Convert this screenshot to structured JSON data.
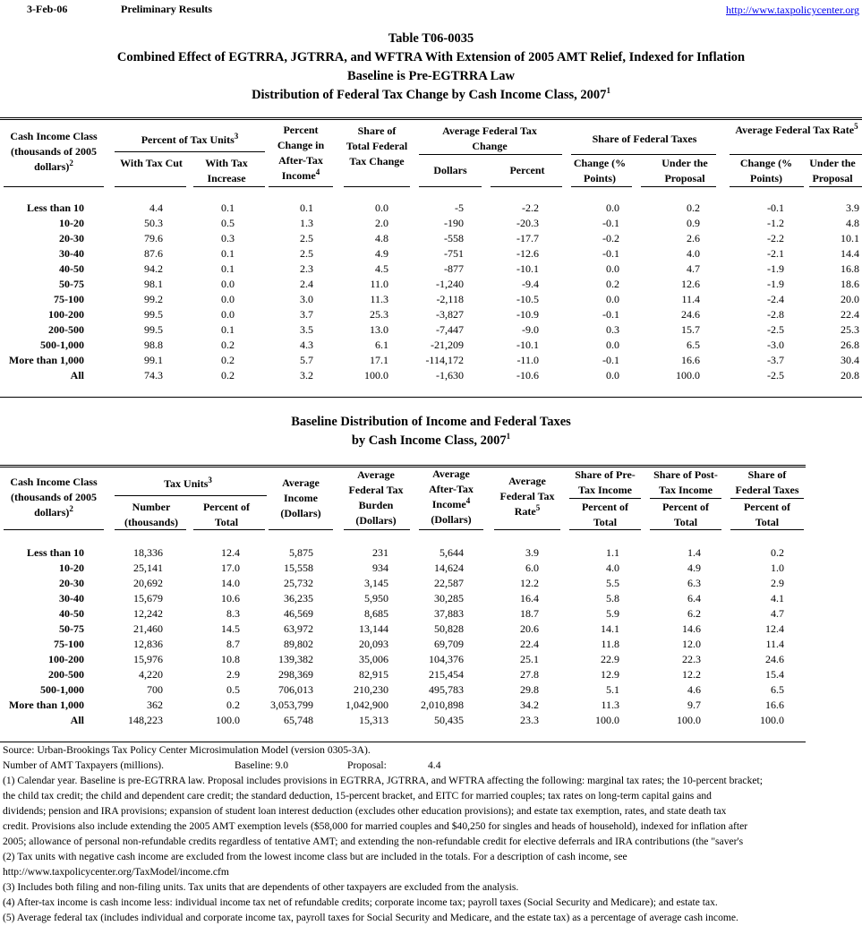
{
  "header": {
    "date": "3-Feb-06",
    "status": "Preliminary Results",
    "url": "http://www.taxpolicycenter.org"
  },
  "table1": {
    "titles": [
      {
        "text": "Table T06-0035"
      },
      {
        "text": "Combined Effect of EGTRRA, JGTRRA, and WFTRA With Extension of 2005 AMT Relief, Indexed for Inflation"
      },
      {
        "text": "Baseline is Pre-EGTRRA Law"
      },
      {
        "text": "Distribution of Federal Tax Change by Cash Income Class, 2007",
        "note": "1"
      }
    ],
    "columns": [
      {
        "text": "Cash Income Class (thousands of 2005 dollars)",
        "note": "2"
      },
      {
        "text": "Percent of Tax Units",
        "note": "3"
      },
      {
        "text": "With Tax Cut"
      },
      {
        "text": "With Tax Increase"
      },
      {
        "text": "Percent Change in After-Tax Income",
        "note": "4"
      },
      {
        "text": "Share of Total Federal Tax Change"
      },
      {
        "text": "Average Federal Tax Change"
      },
      {
        "text": "Dollars"
      },
      {
        "text": "Percent"
      },
      {
        "text": "Share of Federal Taxes"
      },
      {
        "text": "Change (% Points)"
      },
      {
        "text": "Under the Proposal"
      },
      {
        "text": "Average Federal Tax Rate",
        "note": "5"
      },
      {
        "text": "Change (% Points)"
      },
      {
        "text": "Under the Proposal"
      }
    ],
    "rows": [
      {
        "label": "Less than 10",
        "values": [
          "4.4",
          "0.1",
          "0.1",
          "0.0",
          "-5",
          "-2.2",
          "0.0",
          "0.2",
          "-0.1",
          "3.9"
        ]
      },
      {
        "label": "10-20",
        "values": [
          "50.3",
          "0.5",
          "1.3",
          "2.0",
          "-190",
          "-20.3",
          "-0.1",
          "0.9",
          "-1.2",
          "4.8"
        ]
      },
      {
        "label": "20-30",
        "values": [
          "79.6",
          "0.3",
          "2.5",
          "4.8",
          "-558",
          "-17.7",
          "-0.2",
          "2.6",
          "-2.2",
          "10.1"
        ]
      },
      {
        "label": "30-40",
        "values": [
          "87.6",
          "0.1",
          "2.5",
          "4.9",
          "-751",
          "-12.6",
          "-0.1",
          "4.0",
          "-2.1",
          "14.4"
        ]
      },
      {
        "label": "40-50",
        "values": [
          "94.2",
          "0.1",
          "2.3",
          "4.5",
          "-877",
          "-10.1",
          "0.0",
          "4.7",
          "-1.9",
          "16.8"
        ]
      },
      {
        "label": "50-75",
        "values": [
          "98.1",
          "0.0",
          "2.4",
          "11.0",
          "-1,240",
          "-9.4",
          "0.2",
          "12.6",
          "-1.9",
          "18.6"
        ]
      },
      {
        "label": "75-100",
        "values": [
          "99.2",
          "0.0",
          "3.0",
          "11.3",
          "-2,118",
          "-10.5",
          "0.0",
          "11.4",
          "-2.4",
          "20.0"
        ]
      },
      {
        "label": "100-200",
        "values": [
          "99.5",
          "0.0",
          "3.7",
          "25.3",
          "-3,827",
          "-10.9",
          "-0.1",
          "24.6",
          "-2.8",
          "22.4"
        ]
      },
      {
        "label": "200-500",
        "values": [
          "99.5",
          "0.1",
          "3.5",
          "13.0",
          "-7,447",
          "-9.0",
          "0.3",
          "15.7",
          "-2.5",
          "25.3"
        ]
      },
      {
        "label": "500-1,000",
        "values": [
          "98.8",
          "0.2",
          "4.3",
          "6.1",
          "-21,209",
          "-10.1",
          "0.0",
          "6.5",
          "-3.0",
          "26.8"
        ]
      },
      {
        "label": "More than 1,000",
        "values": [
          "99.1",
          "0.2",
          "5.7",
          "17.1",
          "-114,172",
          "-11.0",
          "-0.1",
          "16.6",
          "-3.7",
          "30.4"
        ]
      },
      {
        "label": "All",
        "values": [
          "74.3",
          "0.2",
          "3.2",
          "100.0",
          "-1,630",
          "-10.6",
          "0.0",
          "100.0",
          "-2.5",
          "20.8"
        ]
      }
    ]
  },
  "table2": {
    "titles": [
      {
        "text": "Baseline Distribution of Income and Federal Taxes"
      },
      {
        "text": "by Cash Income Class, 2007",
        "note": "1"
      }
    ],
    "columns": [
      {
        "text": "Cash Income Class (thousands of 2005 dollars)",
        "note": "2"
      },
      {
        "text": "Tax Units",
        "note": "3"
      },
      {
        "text": "Number (thousands)"
      },
      {
        "text": "Percent of Total"
      },
      {
        "text": "Average Income (Dollars)"
      },
      {
        "text": "Average Federal Tax Burden (Dollars)"
      },
      {
        "text": "Average After-Tax Income",
        "note": "4",
        "after": "(Dollars)"
      },
      {
        "text": "Average Federal Tax Rate",
        "note": "5"
      },
      {
        "text": "Share of Pre-Tax Income"
      },
      {
        "text": "Percent of Total"
      },
      {
        "text": "Share of Post-Tax Income"
      },
      {
        "text": "Percent of Total"
      },
      {
        "text": "Share of Federal Taxes"
      },
      {
        "text": "Percent of Total"
      }
    ],
    "rows": [
      {
        "label": "Less than 10",
        "values": [
          "18,336",
          "12.4",
          "5,875",
          "231",
          "5,644",
          "3.9",
          "1.1",
          "1.4",
          "0.2"
        ]
      },
      {
        "label": "10-20",
        "values": [
          "25,141",
          "17.0",
          "15,558",
          "934",
          "14,624",
          "6.0",
          "4.0",
          "4.9",
          "1.0"
        ]
      },
      {
        "label": "20-30",
        "values": [
          "20,692",
          "14.0",
          "25,732",
          "3,145",
          "22,587",
          "12.2",
          "5.5",
          "6.3",
          "2.9"
        ]
      },
      {
        "label": "30-40",
        "values": [
          "15,679",
          "10.6",
          "36,235",
          "5,950",
          "30,285",
          "16.4",
          "5.8",
          "6.4",
          "4.1"
        ]
      },
      {
        "label": "40-50",
        "values": [
          "12,242",
          "8.3",
          "46,569",
          "8,685",
          "37,883",
          "18.7",
          "5.9",
          "6.2",
          "4.7"
        ]
      },
      {
        "label": "50-75",
        "values": [
          "21,460",
          "14.5",
          "63,972",
          "13,144",
          "50,828",
          "20.6",
          "14.1",
          "14.6",
          "12.4"
        ]
      },
      {
        "label": "75-100",
        "values": [
          "12,836",
          "8.7",
          "89,802",
          "20,093",
          "69,709",
          "22.4",
          "11.8",
          "12.0",
          "11.4"
        ]
      },
      {
        "label": "100-200",
        "values": [
          "15,976",
          "10.8",
          "139,382",
          "35,006",
          "104,376",
          "25.1",
          "22.9",
          "22.3",
          "24.6"
        ]
      },
      {
        "label": "200-500",
        "values": [
          "4,220",
          "2.9",
          "298,369",
          "82,915",
          "215,454",
          "27.8",
          "12.9",
          "12.2",
          "15.4"
        ]
      },
      {
        "label": "500-1,000",
        "values": [
          "700",
          "0.5",
          "706,013",
          "210,230",
          "495,783",
          "29.8",
          "5.1",
          "4.6",
          "6.5"
        ]
      },
      {
        "label": "More than 1,000",
        "values": [
          "362",
          "0.2",
          "3,053,799",
          "1,042,900",
          "2,010,898",
          "34.2",
          "11.3",
          "9.7",
          "16.6"
        ]
      },
      {
        "label": "All",
        "values": [
          "148,223",
          "100.0",
          "65,748",
          "15,313",
          "50,435",
          "23.3",
          "100.0",
          "100.0",
          "100.0"
        ]
      }
    ]
  },
  "footer": {
    "source": "Source: Urban-Brookings Tax Policy Center Microsimulation Model (version 0305-3A).",
    "amt": {
      "label": "Number of AMT Taxpayers (millions).",
      "baseline_label": "Baseline:",
      "baseline": "9.0",
      "proposal_label": "Proposal:",
      "proposal": "4.4"
    },
    "notes": [
      "(1) Calendar year. Baseline is pre-EGTRRA law.  Proposal includes provisions in EGTRRA, JGTRRA, and WFTRA affecting the following: marginal tax rates; the 10-percent bracket;",
      "the child tax credit; the child and dependent care credit; the standard deduction, 15-percent bracket, and EITC for married couples; tax rates on long-term capital gains and",
      "dividends; pension and IRA provisions; expansion of student loan interest deduction (excludes other education provisions); and estate tax exemption, rates, and state death tax",
      "credit.  Provisions also include extending the 2005 AMT exemption levels ($58,000 for married couples and $40,250 for singles and heads of household), indexed for inflation after",
      "2005; allowance of personal non-refundable credits regardless of tentative AMT; and extending the non-refundable credit for elective deferrals and IRA contributions (the \"saver's",
      "(2) Tax units with negative cash income are excluded from the lowest income class but are included in the totals. For a description of cash income, see",
      "http://www.taxpolicycenter.org/TaxModel/income.cfm",
      "(3) Includes both filing and non-filing units.  Tax units that are dependents of other taxpayers are excluded from the analysis.",
      "(4) After-tax income is cash income less: individual income tax net of refundable credits; corporate income tax; payroll taxes (Social Security and Medicare); and estate tax.",
      "(5) Average federal tax (includes individual and corporate income tax, payroll taxes for Social Security and Medicare, and the estate tax) as a percentage of average cash income."
    ]
  }
}
